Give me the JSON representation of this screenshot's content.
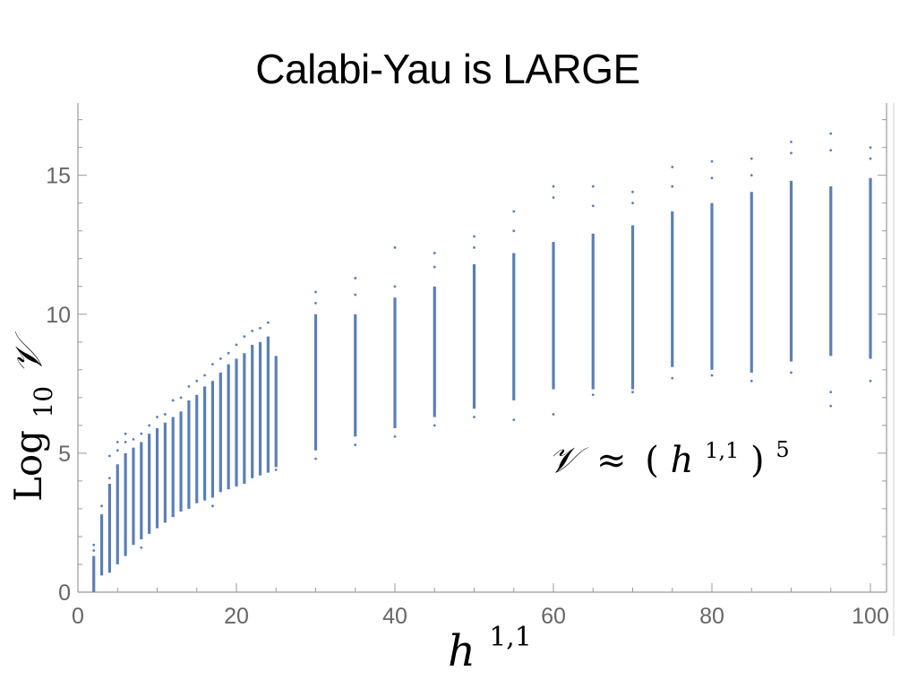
{
  "title": "Calabi-Yau is LARGE",
  "annotation": {
    "symbol": "𝒱",
    "approx": "≈",
    "open": "(",
    "base": "h",
    "sup": "1,1",
    "close": ")",
    "power": "5"
  },
  "axes": {
    "xlabel_base": "h",
    "xlabel_sup": "1,1",
    "ylabel_prefix": "Log",
    "ylabel_sub": "10",
    "ylabel_symbol": "𝒱"
  },
  "chart_data": {
    "type": "scatter",
    "color": "#5b7fb5",
    "axis_color": "#9a9a9a",
    "xlim": [
      0,
      100
    ],
    "ylim": [
      0,
      17.6
    ],
    "xticks": [
      "0",
      "20",
      "40",
      "60",
      "80",
      "100"
    ],
    "yticks": [
      "0",
      "5",
      "10",
      "15"
    ],
    "grid": false,
    "columns": [
      {
        "x": 2,
        "min": 0.0,
        "max": 1.3,
        "outliers": [
          1.5,
          1.7
        ]
      },
      {
        "x": 3,
        "min": 0.6,
        "max": 2.8,
        "outliers": [
          3.1
        ]
      },
      {
        "x": 4,
        "min": 0.7,
        "max": 3.9,
        "outliers": [
          4.1,
          4.9
        ]
      },
      {
        "x": 5,
        "min": 1.0,
        "max": 4.6,
        "outliers": [
          5.1,
          5.4
        ]
      },
      {
        "x": 6,
        "min": 1.3,
        "max": 5.0,
        "outliers": [
          5.4,
          5.7
        ]
      },
      {
        "x": 7,
        "min": 1.7,
        "max": 5.2,
        "outliers": [
          5.5
        ]
      },
      {
        "x": 8,
        "min": 1.9,
        "max": 5.4,
        "outliers": [
          1.6,
          5.7
        ]
      },
      {
        "x": 9,
        "min": 2.1,
        "max": 5.7,
        "outliers": [
          6.0
        ]
      },
      {
        "x": 10,
        "min": 2.3,
        "max": 5.9,
        "outliers": [
          6.3
        ]
      },
      {
        "x": 11,
        "min": 2.5,
        "max": 6.1,
        "outliers": [
          6.4
        ]
      },
      {
        "x": 12,
        "min": 2.7,
        "max": 6.3,
        "outliers": [
          6.9
        ]
      },
      {
        "x": 13,
        "min": 2.9,
        "max": 6.5,
        "outliers": [
          7.0
        ]
      },
      {
        "x": 14,
        "min": 3.0,
        "max": 6.9,
        "outliers": [
          7.4
        ]
      },
      {
        "x": 15,
        "min": 3.2,
        "max": 7.1,
        "outliers": [
          7.6
        ]
      },
      {
        "x": 16,
        "min": 3.3,
        "max": 7.4,
        "outliers": [
          7.8
        ]
      },
      {
        "x": 17,
        "min": 3.4,
        "max": 7.6,
        "outliers": [
          3.1,
          8.2
        ]
      },
      {
        "x": 18,
        "min": 3.6,
        "max": 7.9,
        "outliers": [
          8.4
        ]
      },
      {
        "x": 19,
        "min": 3.7,
        "max": 8.2,
        "outliers": [
          8.6
        ]
      },
      {
        "x": 20,
        "min": 3.8,
        "max": 8.4,
        "outliers": [
          8.9
        ]
      },
      {
        "x": 21,
        "min": 3.9,
        "max": 8.6,
        "outliers": [
          9.2
        ]
      },
      {
        "x": 22,
        "min": 4.1,
        "max": 8.9,
        "outliers": [
          9.4
        ]
      },
      {
        "x": 23,
        "min": 4.2,
        "max": 9.0,
        "outliers": [
          9.5
        ]
      },
      {
        "x": 24,
        "min": 4.3,
        "max": 9.2,
        "outliers": [
          9.7
        ]
      },
      {
        "x": 25,
        "min": 4.5,
        "max": 8.5,
        "outliers": [
          4.4
        ]
      },
      {
        "x": 30,
        "min": 5.1,
        "max": 10.0,
        "outliers": [
          4.8,
          10.4,
          10.8
        ]
      },
      {
        "x": 35,
        "min": 5.6,
        "max": 10.0,
        "outliers": [
          5.3,
          10.7,
          11.3
        ]
      },
      {
        "x": 40,
        "min": 5.9,
        "max": 10.6,
        "outliers": [
          5.6,
          11.0,
          12.4
        ]
      },
      {
        "x": 45,
        "min": 6.3,
        "max": 11.0,
        "outliers": [
          6.0,
          11.7,
          12.2
        ]
      },
      {
        "x": 50,
        "min": 6.6,
        "max": 11.8,
        "outliers": [
          6.3,
          12.4,
          12.8
        ]
      },
      {
        "x": 55,
        "min": 6.9,
        "max": 12.2,
        "outliers": [
          6.2,
          13.0,
          13.7
        ]
      },
      {
        "x": 60,
        "min": 7.3,
        "max": 12.6,
        "outliers": [
          6.4,
          14.2,
          14.6
        ]
      },
      {
        "x": 65,
        "min": 7.3,
        "max": 12.9,
        "outliers": [
          7.1,
          13.9,
          14.6
        ]
      },
      {
        "x": 70,
        "min": 7.3,
        "max": 13.2,
        "outliers": [
          7.2,
          14.0,
          14.4
        ]
      },
      {
        "x": 75,
        "min": 8.1,
        "max": 13.7,
        "outliers": [
          7.7,
          14.6,
          15.3
        ]
      },
      {
        "x": 80,
        "min": 8.0,
        "max": 14.0,
        "outliers": [
          7.8,
          14.9,
          15.5
        ]
      },
      {
        "x": 85,
        "min": 7.9,
        "max": 14.4,
        "outliers": [
          7.6,
          15.0,
          15.6
        ]
      },
      {
        "x": 90,
        "min": 8.3,
        "max": 14.8,
        "outliers": [
          7.9,
          15.8,
          16.2
        ]
      },
      {
        "x": 95,
        "min": 8.5,
        "max": 14.6,
        "outliers": [
          6.7,
          7.2,
          15.9,
          16.5
        ]
      },
      {
        "x": 100,
        "min": 8.4,
        "max": 14.9,
        "outliers": [
          7.6,
          15.6,
          16.0
        ]
      }
    ]
  }
}
